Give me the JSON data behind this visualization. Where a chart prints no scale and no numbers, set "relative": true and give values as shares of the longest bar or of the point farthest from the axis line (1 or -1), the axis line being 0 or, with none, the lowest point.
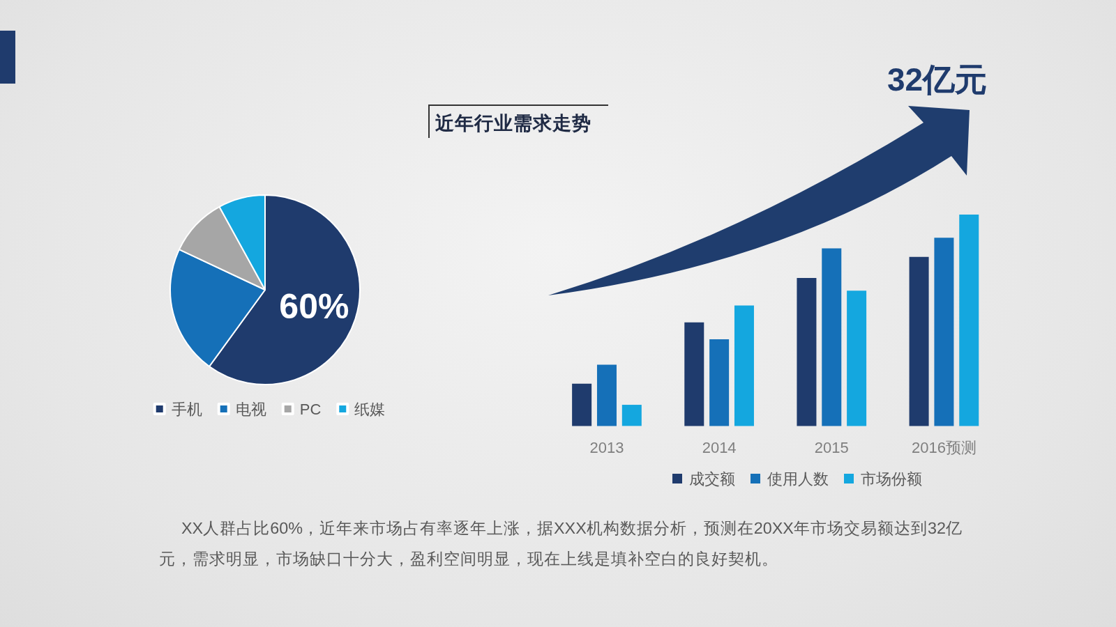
{
  "chart_data": [
    {
      "type": "pie",
      "title": "近年行业需求走势",
      "categories": [
        "手机",
        "电视",
        "PC",
        "纸媒"
      ],
      "values": [
        60,
        22,
        10,
        8
      ],
      "colors": [
        "#1f3b6d",
        "#1570b8",
        "#a6a6a6",
        "#14a7df"
      ],
      "value_labels": [
        "60%",
        null,
        null,
        null
      ],
      "legend": "bottom",
      "annotations": [
        "XX人群占比60%，近年来市场占有率逐年上涨，据XXX机构数据分析，预测在20XX年市场交易额达到32亿元，需求明显，市场缺口十分大，盈利空间明显，现在上线是填补空白的良好契机。"
      ]
    },
    {
      "type": "bar",
      "relative": true,
      "categories": [
        "2013",
        "2014",
        "2015",
        "2016预测"
      ],
      "series": [
        {
          "name": "成交额",
          "color": "#1f3b6d",
          "values": [
            0.2,
            0.49,
            0.7,
            0.8
          ]
        },
        {
          "name": "使用人数",
          "color": "#1570b8",
          "values": [
            0.29,
            0.41,
            0.84,
            0.89
          ]
        },
        {
          "name": "市场份额",
          "color": "#14a7df",
          "values": [
            0.1,
            0.57,
            0.64,
            1.0
          ]
        }
      ],
      "legend": "bottom",
      "annotations": [
        "32亿元"
      ]
    }
  ]
}
